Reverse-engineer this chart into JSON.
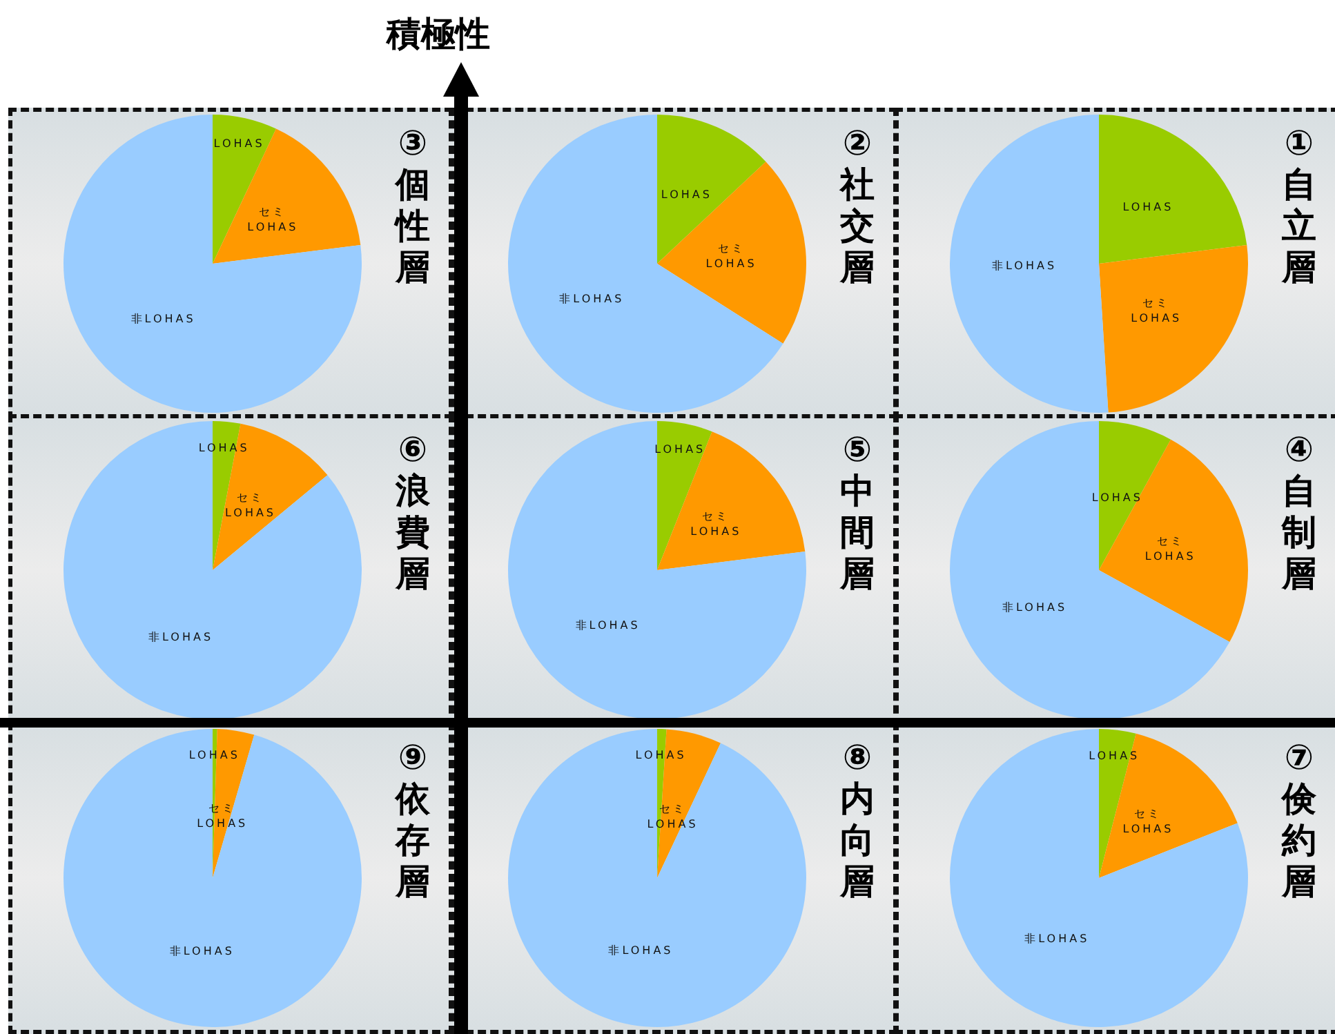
{
  "chart_data": [
    {
      "type": "pie",
      "title": "③個性層",
      "annotations": [
        "積極性"
      ],
      "categories": [
        "LOHAS",
        "セミ LOHAS",
        "非LOHAS"
      ],
      "values": [
        7,
        16,
        77
      ],
      "colors": [
        "#99cc00",
        "#ff9900",
        "#99ccff"
      ]
    },
    {
      "type": "pie",
      "title": "②社交層",
      "categories": [
        "LOHAS",
        "セミ LOHAS",
        "非LOHAS"
      ],
      "values": [
        13,
        21,
        66
      ],
      "colors": [
        "#99cc00",
        "#ff9900",
        "#99ccff"
      ]
    },
    {
      "type": "pie",
      "title": "①自立層",
      "categories": [
        "LOHAS",
        "セミ LOHAS",
        "非LOHAS"
      ],
      "values": [
        23,
        26,
        51
      ],
      "colors": [
        "#99cc00",
        "#ff9900",
        "#99ccff"
      ]
    },
    {
      "type": "pie",
      "title": "⑥浪費層",
      "categories": [
        "LOHAS",
        "セミ LOHAS",
        "非LOHAS"
      ],
      "values": [
        3,
        11,
        86
      ],
      "colors": [
        "#99cc00",
        "#ff9900",
        "#99ccff"
      ]
    },
    {
      "type": "pie",
      "title": "⑤中間層",
      "categories": [
        "LOHAS",
        "セミ LOHAS",
        "非LOHAS"
      ],
      "values": [
        6,
        17,
        77
      ],
      "colors": [
        "#99cc00",
        "#ff9900",
        "#99ccff"
      ]
    },
    {
      "type": "pie",
      "title": "④自制層",
      "categories": [
        "LOHAS",
        "セミ LOHAS",
        "非LOHAS"
      ],
      "values": [
        8,
        25,
        67
      ],
      "colors": [
        "#99cc00",
        "#ff9900",
        "#99ccff"
      ]
    },
    {
      "type": "pie",
      "title": "⑨依存層",
      "categories": [
        "LOHAS",
        "セミ LOHAS",
        "非LOHAS"
      ],
      "values": [
        0.5,
        4,
        95.5
      ],
      "colors": [
        "#99cc00",
        "#ff9900",
        "#99ccff"
      ]
    },
    {
      "type": "pie",
      "title": "⑧内向層",
      "categories": [
        "LOHAS",
        "セミ LOHAS",
        "非LOHAS"
      ],
      "values": [
        1,
        6,
        93
      ],
      "colors": [
        "#99cc00",
        "#ff9900",
        "#99ccff"
      ]
    },
    {
      "type": "pie",
      "title": "⑦倹約層",
      "categories": [
        "LOHAS",
        "セミ LOHAS",
        "非LOHAS"
      ],
      "values": [
        4,
        15,
        81
      ],
      "colors": [
        "#99cc00",
        "#ff9900",
        "#99ccff"
      ]
    }
  ]
}
